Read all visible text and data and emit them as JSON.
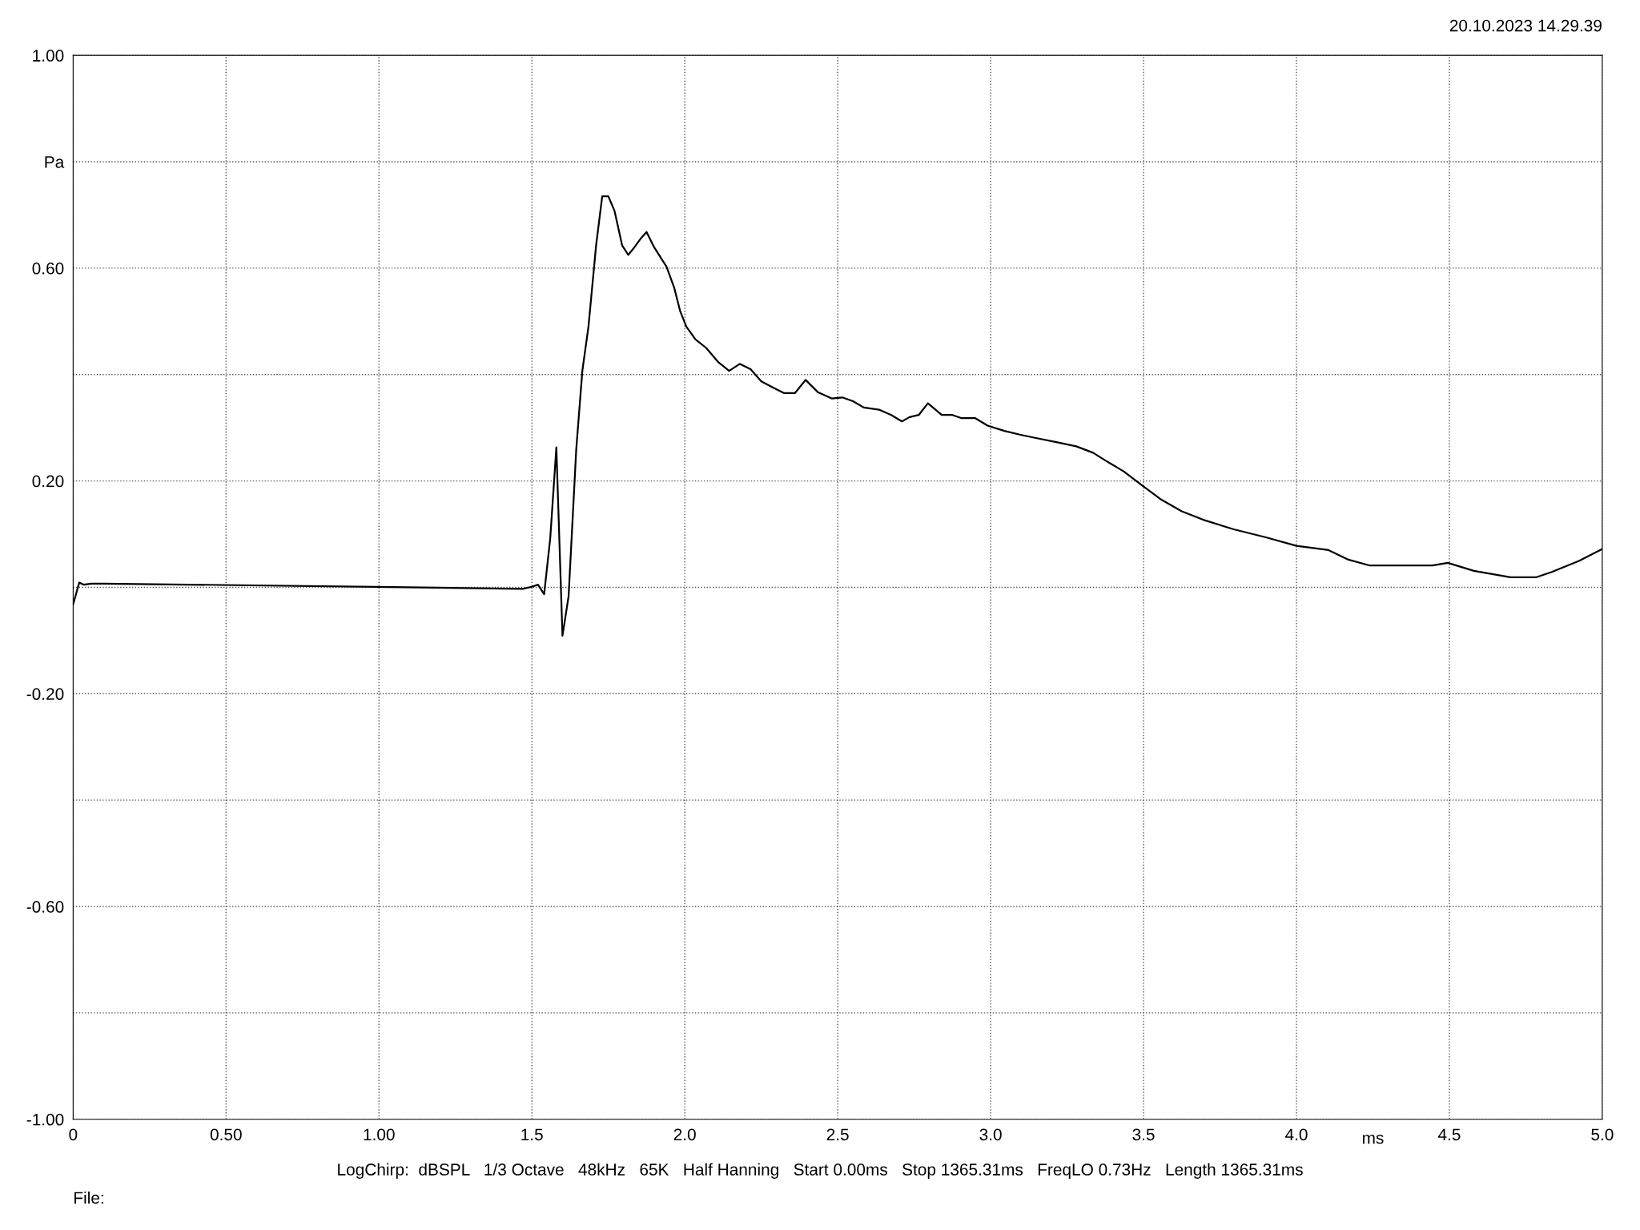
{
  "chart_data": {
    "type": "line",
    "xlabel": "ms",
    "xlim": [
      0,
      5
    ],
    "ylim": [
      -1,
      1
    ],
    "xticks": [
      {
        "value": 0,
        "label": "0"
      },
      {
        "value": 0.5,
        "label": "0.50"
      },
      {
        "value": 1,
        "label": "1.00"
      },
      1.5,
      {
        "value": 2,
        "label": "2.0"
      },
      2.5,
      {
        "value": 3,
        "label": "3.0"
      },
      3.5,
      {
        "value": 4,
        "label": "4.0"
      },
      4.5,
      {
        "value": 5,
        "label": "5.0"
      }
    ],
    "yticks": [
      {
        "value": -1,
        "label": "-1.00"
      },
      {
        "value": -0.8,
        "label": null
      },
      {
        "value": -0.6,
        "label": "-0.60"
      },
      {
        "value": -0.4,
        "label": null
      },
      {
        "value": -0.2,
        "label": "-0.20"
      },
      {
        "value": 0,
        "label": null
      },
      {
        "value": 0.2,
        "label": "0.20"
      },
      {
        "value": 0.4,
        "label": null
      },
      {
        "value": 0.6,
        "label": "0.60"
      },
      {
        "value": 0.8,
        "label": "Pa"
      },
      {
        "value": 1,
        "label": "1.00"
      }
    ],
    "grid": true,
    "marker": "none",
    "line_style": "solid",
    "series": [
      {
        "color": "#000000",
        "x": [
          0,
          0.02,
          0.034,
          0.06,
          0.1,
          0.99,
          1.47,
          1.5,
          1.52,
          1.54,
          1.56,
          1.58,
          1.6,
          1.62,
          1.645,
          1.665,
          1.685,
          1.71,
          1.73,
          1.75,
          1.77,
          1.795,
          1.815,
          1.835,
          1.855,
          1.875,
          1.9,
          1.94,
          1.965,
          1.985,
          2.005,
          2.035,
          2.07,
          2.11,
          2.145,
          2.18,
          2.215,
          2.25,
          2.29,
          2.325,
          2.36,
          2.395,
          2.435,
          2.48,
          2.515,
          2.55,
          2.585,
          2.635,
          2.675,
          2.71,
          2.735,
          2.765,
          2.795,
          2.84,
          2.875,
          2.905,
          2.95,
          2.99,
          3.045,
          3.095,
          3.145,
          3.215,
          3.28,
          3.335,
          3.385,
          3.435,
          3.49,
          3.555,
          3.625,
          3.695,
          3.795,
          3.9,
          4.0,
          4.105,
          4.17,
          4.24,
          4.34,
          4.445,
          4.495,
          4.58,
          4.7,
          4.785,
          4.835,
          4.925,
          5.0
        ],
        "values": [
          -0.032,
          0.009,
          0.005,
          0.007,
          0.007,
          0.001,
          -0.003,
          0.001,
          0.005,
          -0.013,
          0.092,
          0.263,
          -0.091,
          -0.017,
          0.259,
          0.407,
          0.49,
          0.643,
          0.735,
          0.735,
          0.708,
          0.643,
          0.625,
          0.639,
          0.655,
          0.668,
          0.639,
          0.603,
          0.564,
          0.519,
          0.49,
          0.466,
          0.45,
          0.423,
          0.407,
          0.42,
          0.41,
          0.387,
          0.375,
          0.365,
          0.365,
          0.39,
          0.367,
          0.355,
          0.357,
          0.35,
          0.338,
          0.334,
          0.324,
          0.312,
          0.32,
          0.324,
          0.346,
          0.324,
          0.324,
          0.318,
          0.318,
          0.304,
          0.294,
          0.287,
          0.281,
          0.273,
          0.265,
          0.253,
          0.235,
          0.218,
          0.194,
          0.166,
          0.143,
          0.127,
          0.109,
          0.094,
          0.078,
          0.07,
          0.052,
          0.041,
          0.041,
          0.041,
          0.046,
          0.031,
          0.019,
          0.019,
          0.029,
          0.05,
          0.072
        ]
      }
    ],
    "annotations": [
      "20.10.2023 14.29.39",
      "LogChirp:  dBSPL   1/3 Octave   48kHz   65K   Half Hanning   Start 0.00ms   Stop 1365.31ms   FreqLO 0.73Hz   Length 1365.31ms",
      "File:"
    ]
  }
}
